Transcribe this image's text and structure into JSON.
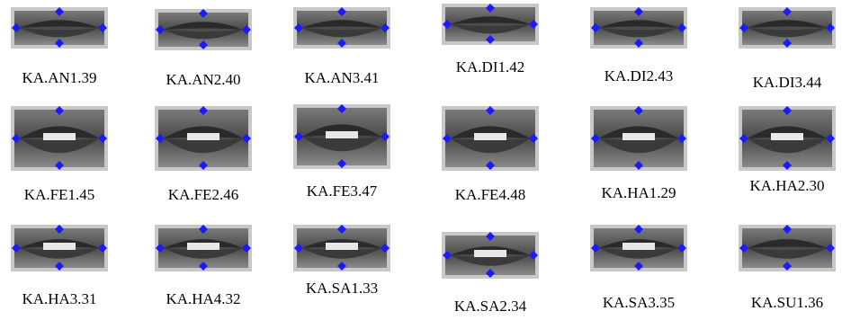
{
  "figure": {
    "rows": [
      [
        "KA.AN1.39",
        "KA.AN2.40",
        "KA.AN3.41",
        "KA.DI1.42",
        "KA.DI2.43",
        "KA.DI3.44"
      ],
      [
        "KA.FE1.45",
        "KA.FE2.46",
        "KA.FE3.47",
        "KA.FE4.48",
        "KA.HA1.29",
        "KA.HA2.30"
      ],
      [
        "KA.HA3.31",
        "KA.HA4.32",
        "KA.SA1.33",
        "KA.SA2.34",
        "KA.SA3.35",
        "KA.SU1.36"
      ]
    ]
  }
}
